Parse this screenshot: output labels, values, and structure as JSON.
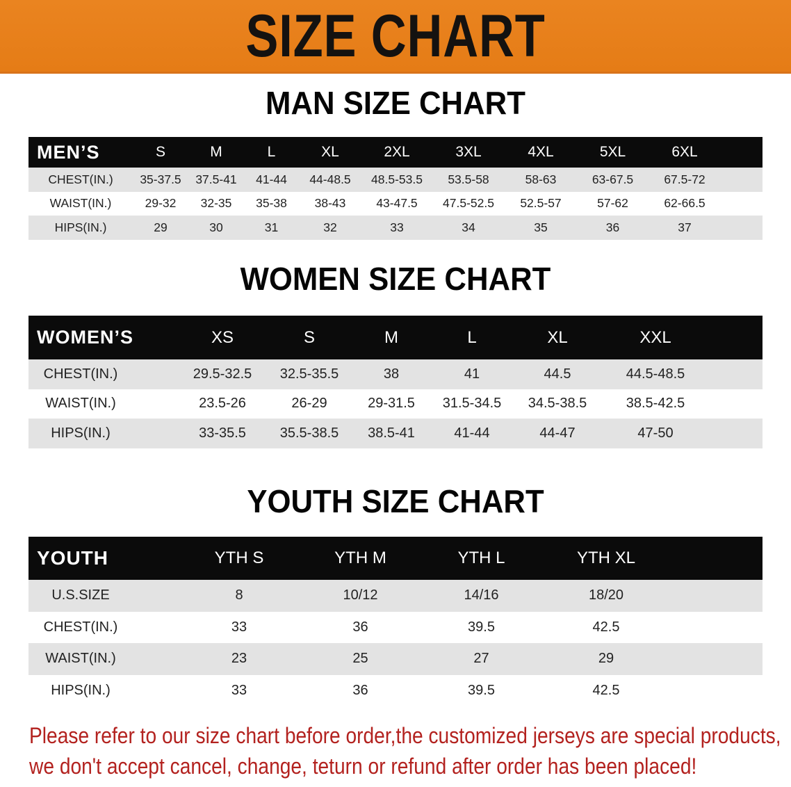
{
  "banner": {
    "title": "SIZE CHART",
    "color": "#E8801C"
  },
  "men": {
    "title": "MAN SIZE CHART",
    "header": [
      "MEN’S",
      "S",
      "M",
      "L",
      "XL",
      "2XL",
      "3XL",
      "4XL",
      "5XL",
      "6XL"
    ],
    "rows": [
      [
        "CHEST(IN.)",
        "35-37.5",
        "37.5-41",
        "41-44",
        "44-48.5",
        "48.5-53.5",
        "53.5-58",
        "58-63",
        "63-67.5",
        "67.5-72"
      ],
      [
        "WAIST(IN.)",
        "29-32",
        "32-35",
        "35-38",
        "38-43",
        "43-47.5",
        "47.5-52.5",
        "52.5-57",
        "57-62",
        "62-66.5"
      ],
      [
        "HIPS(IN.)",
        "29",
        "30",
        "31",
        "32",
        "33",
        "34",
        "35",
        "36",
        "37"
      ]
    ]
  },
  "women": {
    "title": "WOMEN SIZE CHART",
    "header": [
      "WOMEN’S",
      "XS",
      "S",
      "M",
      "L",
      "XL",
      "XXL"
    ],
    "rows": [
      [
        "CHEST(IN.)",
        "29.5-32.5",
        "32.5-35.5",
        "38",
        "41",
        "44.5",
        "44.5-48.5"
      ],
      [
        "WAIST(IN.)",
        "23.5-26",
        "26-29",
        "29-31.5",
        "31.5-34.5",
        "34.5-38.5",
        "38.5-42.5"
      ],
      [
        "HIPS(IN.)",
        "33-35.5",
        "35.5-38.5",
        "38.5-41",
        "41-44",
        "44-47",
        "47-50"
      ]
    ]
  },
  "youth": {
    "title": "YOUTH SIZE CHART",
    "header": [
      "YOUTH",
      "YTH S",
      "YTH M",
      "YTH L",
      "YTH XL"
    ],
    "rows": [
      [
        "U.S.SIZE",
        "8",
        "10/12",
        "14/16",
        "18/20"
      ],
      [
        "CHEST(IN.)",
        "33",
        "36",
        "39.5",
        "42.5"
      ],
      [
        "WAIST(IN.)",
        "23",
        "25",
        "27",
        "29"
      ],
      [
        "HIPS(IN.)",
        "33",
        "36",
        "39.5",
        "42.5"
      ]
    ]
  },
  "notice": {
    "line1": "Please refer to our size chart before order,the customized jerseys are special products,",
    "line2": "we don't accept cancel, change, teturn or refund after order has been placed!",
    "color": "#B3221F"
  }
}
